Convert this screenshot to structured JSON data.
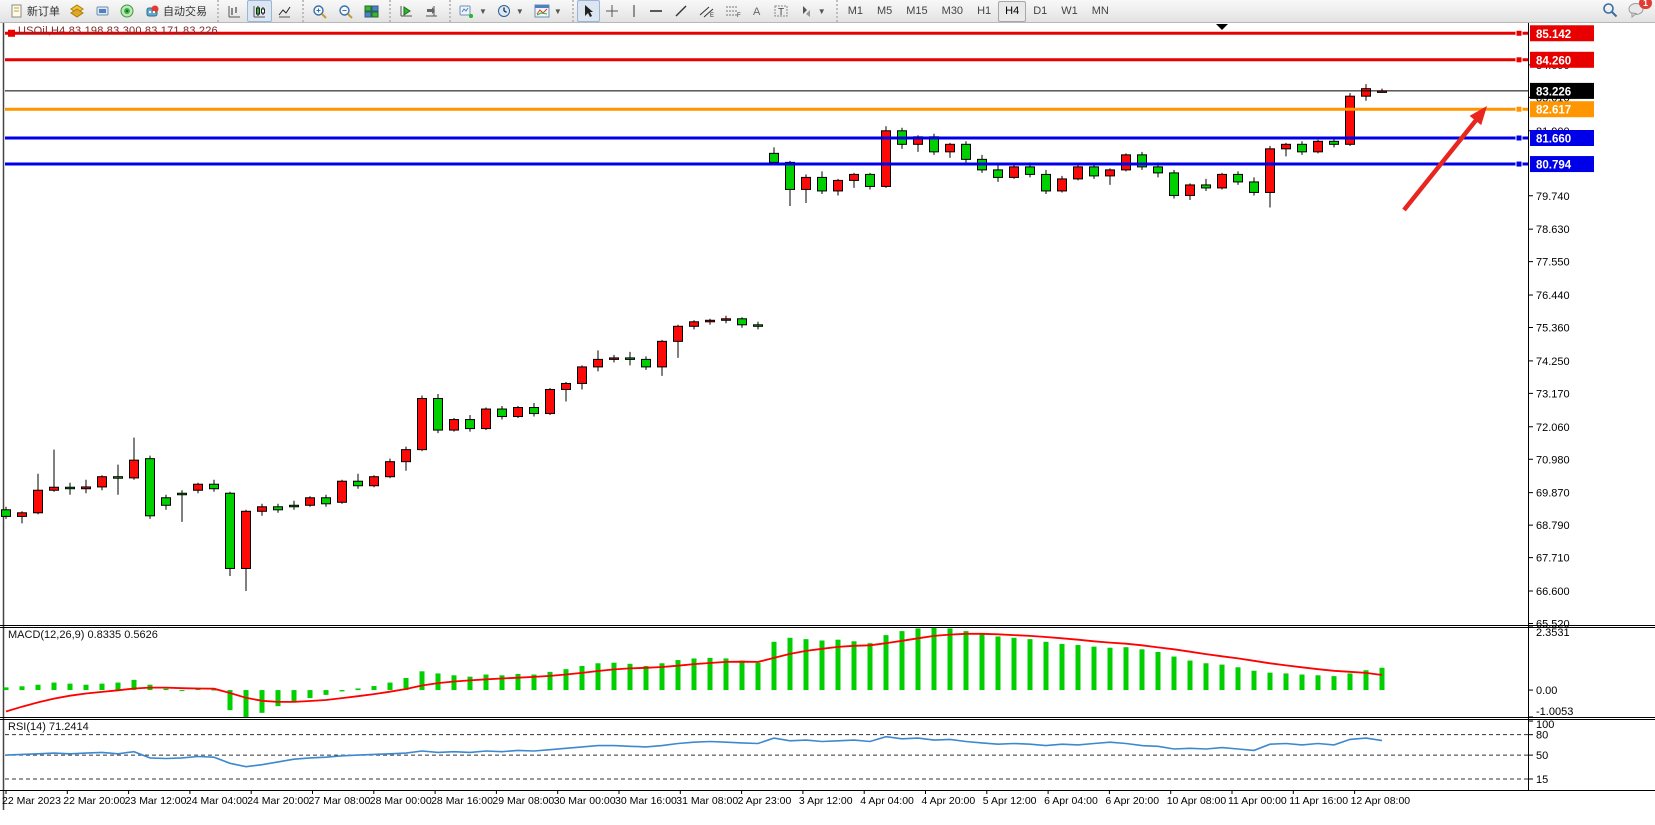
{
  "toolbar": {
    "new_order_label": "新订单",
    "auto_trading_label": "自动交易",
    "timeframes": [
      "M1",
      "M5",
      "M15",
      "M30",
      "H1",
      "H4",
      "D1",
      "W1",
      "MN"
    ],
    "active_timeframe": "H4",
    "notification_count": "1",
    "icon_names": [
      "new-order-icon",
      "layers-icon",
      "market-watch-icon",
      "signal-icon",
      "auto-trading-icon",
      "bar-chart-icon",
      "candlestick-icon",
      "line-chart-icon",
      "zoom-in-icon",
      "zoom-out-icon",
      "tile-windows-icon",
      "auto-scroll-icon",
      "chart-shift-icon",
      "new-chart-icon",
      "period-icon",
      "indicators-window-icon",
      "cursor-icon",
      "crosshair-icon",
      "vertical-line-icon",
      "horizontal-line-icon",
      "trendline-icon",
      "equidistant-channel-icon",
      "fibonacci-icon",
      "text-icon",
      "text-label-icon",
      "shapes-icon",
      "search-icon",
      "notifications-icon"
    ]
  },
  "chart": {
    "title": "USOil,H4  83.198 83.300 83.171 83.226",
    "symbol": "USOil",
    "period": "H4"
  },
  "chart_data": {
    "type": "candlestick",
    "title": "USOil,H4",
    "current_bar": {
      "open": 83.198,
      "high": 83.3,
      "low": 83.171,
      "close": 83.226
    },
    "price_axis": {
      "range": [
        65.47,
        85.45
      ],
      "ticks": [
        84.09,
        83.01,
        81.9,
        79.74,
        78.63,
        77.55,
        76.44,
        75.36,
        74.25,
        73.17,
        72.06,
        70.98,
        69.87,
        68.79,
        67.71,
        66.6,
        65.52
      ]
    },
    "hlines": [
      {
        "value": 85.142,
        "color": "#e80000",
        "width": 3,
        "label": "85.142",
        "badge": "#e80000"
      },
      {
        "value": 84.26,
        "color": "#e80000",
        "width": 3,
        "label": "84.260",
        "badge": "#e80000"
      },
      {
        "value": 83.226,
        "color": "#000000",
        "width": 1,
        "label": "83.226",
        "badge": "#000000"
      },
      {
        "value": 82.617,
        "color": "#ff9500",
        "width": 3,
        "label": "82.617",
        "badge": "#ff9500"
      },
      {
        "value": 81.66,
        "color": "#0000e8",
        "width": 3,
        "label": "81.660",
        "badge": "#0000e8"
      },
      {
        "value": 80.794,
        "color": "#0000e8",
        "width": 3,
        "label": "80.794",
        "badge": "#0000e8"
      }
    ],
    "colors": {
      "bull": "#fb0a07",
      "bear": "#00cf00",
      "wick": "#000000",
      "macd_hist": "#00cf00",
      "macd_signal": "#ff0000",
      "rsi_line": "#3c89d0"
    },
    "candles": [
      [
        69.3,
        69.4,
        69.0,
        69.08
      ],
      [
        69.08,
        69.25,
        68.85,
        69.2
      ],
      [
        69.2,
        70.5,
        69.15,
        69.95
      ],
      [
        69.95,
        71.3,
        69.9,
        70.05
      ],
      [
        70.05,
        70.2,
        69.8,
        70.0
      ],
      [
        70.0,
        70.3,
        69.85,
        70.06
      ],
      [
        70.06,
        70.45,
        69.95,
        70.4
      ],
      [
        70.4,
        70.8,
        69.8,
        70.36
      ],
      [
        70.36,
        71.7,
        70.3,
        70.95
      ],
      [
        71.0,
        71.1,
        69.0,
        69.1
      ],
      [
        69.7,
        69.8,
        69.3,
        69.45
      ],
      [
        69.85,
        69.95,
        68.9,
        69.8
      ],
      [
        69.95,
        70.2,
        69.85,
        70.15
      ],
      [
        70.15,
        70.3,
        69.9,
        70.0
      ],
      [
        69.85,
        69.9,
        67.1,
        67.35
      ],
      [
        67.35,
        69.3,
        66.6,
        69.25
      ],
      [
        69.25,
        69.5,
        69.1,
        69.4
      ],
      [
        69.4,
        69.5,
        69.2,
        69.3
      ],
      [
        69.45,
        69.6,
        69.3,
        69.43
      ],
      [
        69.45,
        69.75,
        69.4,
        69.7
      ],
      [
        69.7,
        69.8,
        69.4,
        69.5
      ],
      [
        69.55,
        70.3,
        69.5,
        70.25
      ],
      [
        70.25,
        70.5,
        70.0,
        70.1
      ],
      [
        70.1,
        70.45,
        70.05,
        70.4
      ],
      [
        70.4,
        71.0,
        70.35,
        70.9
      ],
      [
        70.9,
        71.4,
        70.6,
        71.3
      ],
      [
        71.3,
        73.1,
        71.25,
        73.0
      ],
      [
        73.0,
        73.15,
        71.85,
        71.95
      ],
      [
        71.95,
        72.35,
        71.9,
        72.3
      ],
      [
        72.3,
        72.45,
        71.9,
        72.0
      ],
      [
        72.0,
        72.7,
        71.95,
        72.65
      ],
      [
        72.65,
        72.75,
        72.3,
        72.4
      ],
      [
        72.4,
        72.75,
        72.35,
        72.7
      ],
      [
        72.7,
        72.85,
        72.4,
        72.5
      ],
      [
        72.5,
        73.35,
        72.45,
        73.3
      ],
      [
        73.3,
        73.55,
        72.9,
        73.5
      ],
      [
        73.5,
        74.1,
        73.3,
        74.05
      ],
      [
        74.05,
        74.6,
        73.9,
        74.3
      ],
      [
        74.3,
        74.45,
        74.2,
        74.35
      ],
      [
        74.35,
        74.55,
        74.1,
        74.3
      ],
      [
        74.3,
        74.4,
        73.95,
        74.05
      ],
      [
        74.05,
        74.95,
        73.75,
        74.9
      ],
      [
        74.9,
        75.45,
        74.35,
        75.4
      ],
      [
        75.4,
        75.6,
        75.3,
        75.55
      ],
      [
        75.55,
        75.65,
        75.45,
        75.6
      ],
      [
        75.6,
        75.75,
        75.5,
        75.65
      ],
      [
        75.65,
        75.7,
        75.35,
        75.45
      ],
      [
        75.45,
        75.55,
        75.3,
        75.4
      ],
      [
        81.15,
        81.35,
        80.75,
        80.85
      ],
      [
        80.85,
        80.9,
        79.4,
        79.95
      ],
      [
        79.95,
        80.45,
        79.5,
        80.35
      ],
      [
        80.35,
        80.55,
        79.8,
        79.9
      ],
      [
        79.9,
        80.3,
        79.75,
        80.25
      ],
      [
        80.25,
        80.5,
        80.0,
        80.45
      ],
      [
        80.45,
        80.5,
        79.95,
        80.05
      ],
      [
        80.05,
        82.05,
        80.0,
        81.9
      ],
      [
        81.9,
        82.0,
        81.3,
        81.45
      ],
      [
        81.45,
        81.75,
        81.2,
        81.7
      ],
      [
        81.7,
        81.8,
        81.1,
        81.2
      ],
      [
        81.2,
        81.5,
        81.0,
        81.45
      ],
      [
        81.45,
        81.55,
        80.85,
        80.95
      ],
      [
        80.95,
        81.1,
        80.5,
        80.6
      ],
      [
        80.6,
        80.8,
        80.2,
        80.35
      ],
      [
        80.35,
        80.75,
        80.3,
        80.7
      ],
      [
        80.7,
        80.85,
        80.35,
        80.45
      ],
      [
        80.45,
        80.6,
        79.8,
        79.9
      ],
      [
        79.9,
        80.4,
        79.85,
        80.3
      ],
      [
        80.3,
        80.75,
        80.25,
        80.7
      ],
      [
        80.7,
        80.8,
        80.3,
        80.4
      ],
      [
        80.4,
        80.65,
        80.1,
        80.6
      ],
      [
        80.6,
        81.15,
        80.55,
        81.1
      ],
      [
        81.1,
        81.2,
        80.6,
        80.7
      ],
      [
        80.7,
        80.85,
        80.35,
        80.5
      ],
      [
        80.5,
        80.6,
        79.65,
        79.75
      ],
      [
        79.75,
        80.15,
        79.6,
        80.1
      ],
      [
        80.1,
        80.3,
        79.9,
        80.0
      ],
      [
        80.0,
        80.5,
        79.95,
        80.45
      ],
      [
        80.45,
        80.55,
        80.1,
        80.2
      ],
      [
        80.2,
        80.35,
        79.75,
        79.85
      ],
      [
        79.85,
        81.4,
        79.35,
        81.3
      ],
      [
        81.3,
        81.5,
        81.05,
        81.45
      ],
      [
        81.45,
        81.55,
        81.1,
        81.2
      ],
      [
        81.2,
        81.6,
        81.15,
        81.55
      ],
      [
        81.55,
        81.65,
        81.35,
        81.45
      ],
      [
        81.45,
        83.15,
        81.4,
        83.05
      ],
      [
        83.05,
        83.45,
        82.9,
        83.3
      ],
      [
        83.198,
        83.3,
        83.171,
        83.226
      ]
    ],
    "macd": {
      "label": "MACD(12,26,9)",
      "value": "0.8335",
      "signal_value": "0.5626",
      "axis": {
        "max": 2.3531,
        "zero": "0.00",
        "min": -1.0053
      },
      "axis_labels": [
        "2.3531",
        "0.00",
        "-1.0053"
      ],
      "hist": [
        0.1,
        0.14,
        0.2,
        0.28,
        0.24,
        0.2,
        0.24,
        0.28,
        0.38,
        0.2,
        0.05,
        -0.02,
        0.04,
        0.02,
        -0.75,
        -1.0053,
        -0.85,
        -0.6,
        -0.45,
        -0.3,
        -0.18,
        -0.05,
        0.06,
        0.15,
        0.28,
        0.45,
        0.7,
        0.62,
        0.55,
        0.5,
        0.58,
        0.55,
        0.6,
        0.58,
        0.68,
        0.78,
        0.9,
        1.0,
        1.02,
        0.98,
        0.9,
        1.0,
        1.12,
        1.18,
        1.2,
        1.18,
        1.1,
        1.02,
        1.8,
        1.95,
        1.9,
        1.85,
        1.88,
        1.82,
        1.75,
        2.05,
        2.2,
        2.3,
        2.3531,
        2.3,
        2.2,
        2.1,
        2.0,
        1.95,
        1.9,
        1.8,
        1.72,
        1.68,
        1.62,
        1.58,
        1.6,
        1.52,
        1.42,
        1.25,
        1.1,
        1.0,
        0.95,
        0.85,
        0.72,
        0.65,
        0.62,
        0.58,
        0.55,
        0.52,
        0.62,
        0.74,
        0.8335
      ],
      "signal": [
        -0.8,
        -0.62,
        -0.46,
        -0.32,
        -0.21,
        -0.13,
        -0.07,
        -0.01,
        0.06,
        0.09,
        0.09,
        0.07,
        0.06,
        0.05,
        -0.11,
        -0.29,
        -0.4,
        -0.44,
        -0.44,
        -0.41,
        -0.37,
        -0.3,
        -0.23,
        -0.15,
        -0.06,
        0.04,
        0.17,
        0.26,
        0.32,
        0.36,
        0.4,
        0.43,
        0.46,
        0.49,
        0.53,
        0.58,
        0.64,
        0.71,
        0.77,
        0.81,
        0.83,
        0.86,
        0.91,
        0.97,
        1.01,
        1.05,
        1.06,
        1.05,
        1.2,
        1.35,
        1.46,
        1.54,
        1.61,
        1.65,
        1.67,
        1.75,
        1.84,
        1.93,
        2.02,
        2.07,
        2.1,
        2.1,
        2.08,
        2.05,
        2.02,
        1.98,
        1.93,
        1.88,
        1.82,
        1.77,
        1.73,
        1.67,
        1.59,
        1.52,
        1.43,
        1.34,
        1.26,
        1.18,
        1.09,
        1.0,
        0.92,
        0.85,
        0.78,
        0.72,
        0.68,
        0.64,
        0.5626
      ]
    },
    "rsi": {
      "label": "RSI(14)",
      "value": "71.2414",
      "levels": [
        100,
        80,
        50,
        15
      ],
      "series": [
        50,
        51,
        52,
        53,
        52,
        53,
        54,
        52,
        55,
        46,
        45,
        46,
        48,
        47,
        38,
        33,
        36,
        40,
        44,
        46,
        47,
        49,
        50,
        51,
        52,
        53,
        56,
        54,
        55,
        54,
        56,
        55,
        57,
        56,
        58,
        60,
        62,
        64,
        64,
        63,
        62,
        64,
        67,
        69,
        70,
        69,
        68,
        67,
        75,
        71,
        72,
        70,
        71,
        72,
        70,
        77,
        74,
        75,
        72,
        73,
        70,
        68,
        66,
        67,
        66,
        64,
        66,
        65,
        67,
        69,
        67,
        64,
        63,
        59,
        60,
        59,
        61,
        59,
        57,
        66,
        67,
        65,
        67,
        65,
        73,
        75,
        71.24
      ]
    },
    "time_labels": [
      "22 Mar 2023",
      "22 Mar 20:00",
      "23 Mar 12:00",
      "24 Mar 04:00",
      "24 Mar 20:00",
      "27 Mar 08:00",
      "28 Mar 00:00",
      "28 Mar 16:00",
      "29 Mar 08:00",
      "30 Mar 00:00",
      "30 Mar 16:00",
      "31 Mar 08:00",
      "2 Apr 23:00",
      "3 Apr 12:00",
      "4 Apr 04:00",
      "4 Apr 20:00",
      "5 Apr 12:00",
      "6 Apr 04:00",
      "6 Apr 20:00",
      "10 Apr 08:00",
      "11 Apr 00:00",
      "11 Apr 16:00",
      "12 Apr 08:00"
    ],
    "annotations": [
      {
        "type": "arrow",
        "color": "#e8251f",
        "from_xy": [
          1404,
          210
        ],
        "to_xy": [
          1487,
          106
        ]
      },
      {
        "type": "triangle-marker",
        "color": "#000000",
        "xy": [
          1222,
          27
        ]
      }
    ]
  }
}
